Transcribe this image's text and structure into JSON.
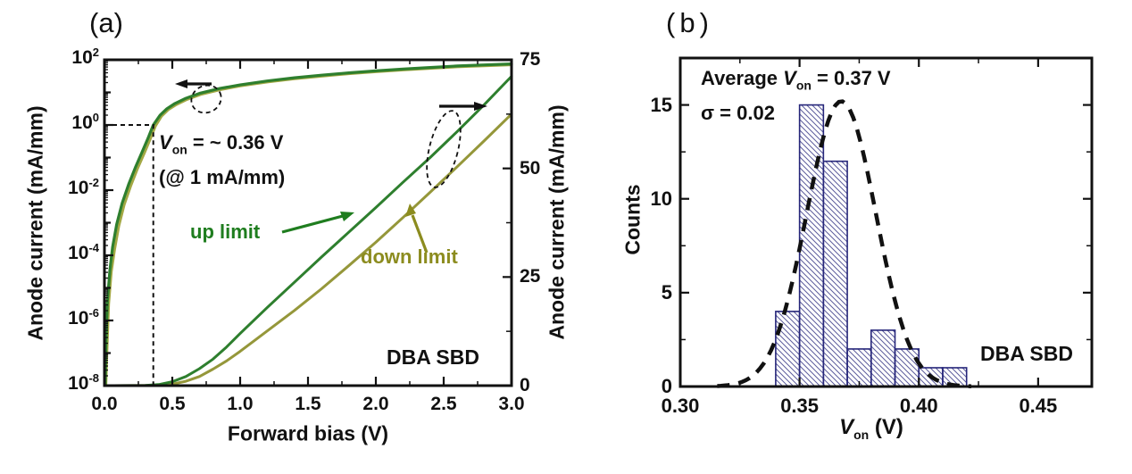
{
  "figure": {
    "background": "#ffffff"
  },
  "panels": {
    "a": {
      "letter": "(a)"
    },
    "b": {
      "letter": "(b)"
    }
  },
  "colors": {
    "green_curve": "#2e7f2e",
    "green_text": "#1f7d1f",
    "olive_curve": "#95973a",
    "olive_log_curve": "#a3a844",
    "olive_text": "#8c8c1f",
    "black": "#111111",
    "bar_edge": "#26267a",
    "bar_hatch": "#5c5c9c"
  },
  "chart_data": [
    {
      "id": "a",
      "type": "line",
      "panel_label": "(a)",
      "x_axis": {
        "label": "Forward bias (V)",
        "min": 0.0,
        "max": 3.0,
        "major_ticks": [
          0.0,
          0.5,
          1.0,
          1.5,
          2.0,
          2.5,
          3.0
        ],
        "tick_labels": [
          "0.0",
          "0.5",
          "1.0",
          "1.5",
          "2.0",
          "2.5",
          "3.0"
        ],
        "minor_tick_step": 0.25
      },
      "y_left_axis": {
        "label": "Anode current (mA/mm)",
        "scale": "log",
        "base": "10",
        "min_exp": -8,
        "max_exp": 2,
        "labeled_exponents": [
          2,
          0,
          -2,
          -4,
          -6,
          -8
        ]
      },
      "y_right_axis": {
        "label": "Anode current (mA/mm)",
        "scale": "linear",
        "min": 0,
        "max": 75,
        "major_ticks": [
          0,
          25,
          50,
          75
        ],
        "tick_labels": [
          "0",
          "25",
          "50",
          "75"
        ],
        "minor_ticks": [
          12.5,
          37.5,
          62.5
        ]
      },
      "series": [
        {
          "name": "up limit (log scale)",
          "axis": "left",
          "color_key": "green_curve",
          "points_v_log10I": [
            [
              0.005,
              -8
            ],
            [
              0.012,
              -6.6
            ],
            [
              0.022,
              -5.4
            ],
            [
              0.04,
              -4.45
            ],
            [
              0.06,
              -3.75
            ],
            [
              0.09,
              -3.05
            ],
            [
              0.13,
              -2.4
            ],
            [
              0.18,
              -1.8
            ],
            [
              0.23,
              -1.28
            ],
            [
              0.28,
              -0.8
            ],
            [
              0.32,
              -0.42
            ],
            [
              0.36,
              0
            ],
            [
              0.41,
              0.3
            ],
            [
              0.46,
              0.5
            ],
            [
              0.52,
              0.66
            ],
            [
              0.6,
              0.82
            ],
            [
              0.7,
              0.97
            ],
            [
              0.85,
              1.12
            ],
            [
              1.0,
              1.23
            ],
            [
              1.2,
              1.35
            ],
            [
              1.4,
              1.45
            ],
            [
              1.6,
              1.53
            ],
            [
              1.8,
              1.6
            ],
            [
              2.0,
              1.66
            ],
            [
              2.2,
              1.715
            ],
            [
              2.4,
              1.765
            ],
            [
              2.6,
              1.81
            ],
            [
              2.8,
              1.845
            ],
            [
              3.0,
              1.875
            ]
          ]
        },
        {
          "name": "down limit (log scale)",
          "axis": "left",
          "color_key": "olive_log_curve",
          "points_v_log10I": [
            [
              0.01,
              -8
            ],
            [
              0.02,
              -6.7
            ],
            [
              0.03,
              -5.5
            ],
            [
              0.05,
              -4.5
            ],
            [
              0.075,
              -3.8
            ],
            [
              0.105,
              -3.1
            ],
            [
              0.145,
              -2.45
            ],
            [
              0.195,
              -1.85
            ],
            [
              0.245,
              -1.32
            ],
            [
              0.295,
              -0.85
            ],
            [
              0.335,
              -0.45
            ],
            [
              0.375,
              -0.03
            ],
            [
              0.42,
              0.27
            ],
            [
              0.47,
              0.47
            ],
            [
              0.53,
              0.63
            ],
            [
              0.61,
              0.79
            ],
            [
              0.71,
              0.94
            ],
            [
              0.86,
              1.09
            ],
            [
              1.0,
              1.2
            ],
            [
              1.2,
              1.32
            ],
            [
              1.4,
              1.42
            ],
            [
              1.6,
              1.5
            ],
            [
              1.8,
              1.575
            ],
            [
              2.0,
              1.635
            ],
            [
              2.2,
              1.69
            ],
            [
              2.4,
              1.74
            ],
            [
              2.6,
              1.785
            ],
            [
              2.8,
              1.82
            ],
            [
              3.0,
              1.85
            ]
          ]
        },
        {
          "name": "up limit (linear scale)",
          "axis": "right",
          "color_key": "green_curve",
          "points_v_I": [
            [
              0.0,
              0
            ],
            [
              0.3,
              0.05
            ],
            [
              0.4,
              0.25
            ],
            [
              0.5,
              0.9
            ],
            [
              0.6,
              2.1
            ],
            [
              0.7,
              3.9
            ],
            [
              0.8,
              6.1
            ],
            [
              0.9,
              8.9
            ],
            [
              1.0,
              12.0
            ],
            [
              1.2,
              18.0
            ],
            [
              1.4,
              23.8
            ],
            [
              1.6,
              29.6
            ],
            [
              1.8,
              35.3
            ],
            [
              2.0,
              41.0
            ],
            [
              2.2,
              46.8
            ],
            [
              2.4,
              52.5
            ],
            [
              2.6,
              58.5
            ],
            [
              2.8,
              64.7
            ],
            [
              3.0,
              71.2
            ]
          ]
        },
        {
          "name": "down limit (linear scale)",
          "axis": "right",
          "color_key": "olive_curve",
          "points_v_I": [
            [
              0.0,
              0
            ],
            [
              0.4,
              0.05
            ],
            [
              0.5,
              0.35
            ],
            [
              0.6,
              1.0
            ],
            [
              0.7,
              2.1
            ],
            [
              0.8,
              3.8
            ],
            [
              0.9,
              5.7
            ],
            [
              1.0,
              7.9
            ],
            [
              1.2,
              12.6
            ],
            [
              1.4,
              17.3
            ],
            [
              1.6,
              22.3
            ],
            [
              1.8,
              27.6
            ],
            [
              2.0,
              33.0
            ],
            [
              2.2,
              38.7
            ],
            [
              2.4,
              44.5
            ],
            [
              2.6,
              50.4
            ],
            [
              2.8,
              56.4
            ],
            [
              3.0,
              62.5
            ]
          ]
        }
      ],
      "annotations": {
        "von": {
          "var": "V",
          "sub": "on",
          "post": " = ~ 0.36 V"
        },
        "von_line2": "(@ 1 mA/mm)",
        "von_guide": {
          "x_V": 0.36,
          "log10I": 0
        },
        "up_label": "up limit",
        "down_label": "down limit",
        "device": "DBA SBD"
      }
    },
    {
      "id": "b",
      "type": "histogram",
      "panel_label": "(b)",
      "x_axis": {
        "label_var": "V",
        "label_sub": "on",
        "label_post": " (V)",
        "min": 0.3,
        "max": 0.4725,
        "major_ticks": [
          0.3,
          0.35,
          0.4,
          0.45
        ],
        "tick_labels": [
          "0.30",
          "0.35",
          "0.40",
          "0.45"
        ],
        "minor_ticks": [
          0.325,
          0.375,
          0.425
        ]
      },
      "y_axis": {
        "label": "Counts",
        "min": 0,
        "max": 17.5,
        "major_ticks": [
          0,
          5,
          10,
          15
        ],
        "tick_labels": [
          "0",
          "5",
          "10",
          "15"
        ],
        "minor_ticks": [
          2.5,
          7.5,
          12.5
        ]
      },
      "bins": {
        "bin_width_V": 0.01,
        "left_edges_V": [
          0.34,
          0.35,
          0.36,
          0.37,
          0.38,
          0.39,
          0.4,
          0.41
        ],
        "counts": [
          4,
          15,
          12,
          2,
          3,
          2,
          1,
          1
        ]
      },
      "gauss_fit": {
        "mu": 0.3675,
        "sigma": 0.0145,
        "amplitude": 15.2,
        "draw_range_V": [
          0.3155,
          0.4235
        ]
      },
      "annotations": {
        "avg": {
          "pre": "Average ",
          "var": "V",
          "sub": "on",
          "post": " = 0.37 V"
        },
        "sigma_line": "σ = 0.02",
        "device": "DBA SBD"
      }
    }
  ]
}
